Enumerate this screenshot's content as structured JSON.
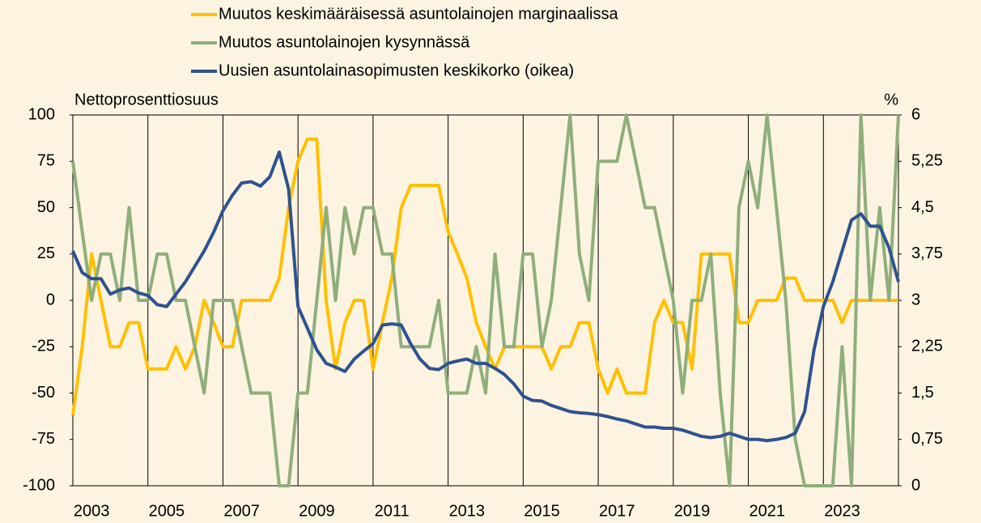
{
  "chart_data": {
    "type": "line",
    "y_axis_label": "Nettoprosenttiosuus",
    "y2_axis_label": "%",
    "x": [
      2003,
      2003.25,
      2003.5,
      2003.75,
      2004,
      2004.25,
      2004.5,
      2004.75,
      2005,
      2005.25,
      2005.5,
      2005.75,
      2006,
      2006.25,
      2006.5,
      2006.75,
      2007,
      2007.25,
      2007.5,
      2007.75,
      2008,
      2008.25,
      2008.5,
      2008.75,
      2009,
      2009.25,
      2009.5,
      2009.75,
      2010,
      2010.25,
      2010.5,
      2010.75,
      2011,
      2011.25,
      2011.5,
      2011.75,
      2012,
      2012.25,
      2012.5,
      2012.75,
      2013,
      2013.25,
      2013.5,
      2013.75,
      2014,
      2014.25,
      2014.5,
      2014.75,
      2015,
      2015.25,
      2015.5,
      2015.75,
      2016,
      2016.25,
      2016.5,
      2016.75,
      2017,
      2017.25,
      2017.5,
      2017.75,
      2018,
      2018.25,
      2018.5,
      2018.75,
      2019,
      2019.25,
      2019.5,
      2019.75,
      2020,
      2020.25,
      2020.5,
      2020.75,
      2021,
      2021.25,
      2021.5,
      2021.75,
      2022,
      2022.25,
      2022.5,
      2022.75,
      2023,
      2023.25,
      2023.5,
      2023.75,
      2024,
      2024.25,
      2024.5,
      2024.75,
      2025
    ],
    "xlim": [
      2003,
      2025
    ],
    "xticks": [
      2003,
      2005,
      2007,
      2009,
      2011,
      2013,
      2015,
      2017,
      2019,
      2021,
      2023
    ],
    "ylim": [
      -100,
      100
    ],
    "yticks": [
      -100,
      -75,
      -50,
      -25,
      0,
      25,
      50,
      75,
      100
    ],
    "y2lim": [
      0,
      6
    ],
    "y2ticks": [
      0,
      {
        "value": 0.75,
        "label": "0,75"
      },
      {
        "value": 1.5,
        "label": "1,5"
      },
      {
        "value": 2.25,
        "label": "2,25"
      },
      3,
      {
        "value": 3.75,
        "label": "3,75"
      },
      {
        "value": 4.5,
        "label": "4,5"
      },
      {
        "value": 5.25,
        "label": "5,25"
      },
      6
    ],
    "grid": true,
    "series": [
      {
        "name": "Muutos keskimääräisessä asuntolainojen marginaalissa",
        "color": "#ffc000",
        "values": [
          -62,
          -25,
          25,
          0,
          -25,
          -25,
          -12,
          -12,
          -37,
          -37,
          -37,
          -25,
          -37,
          -25,
          0,
          -12,
          -25,
          -25,
          0,
          0,
          0,
          0,
          12,
          50,
          75,
          87,
          87,
          0,
          -37,
          -12,
          0,
          0,
          -37,
          -12,
          12,
          50,
          62,
          62,
          62,
          62,
          37,
          25,
          12,
          -12,
          -25,
          -37,
          -25,
          -25,
          -25,
          -25,
          -25,
          -37,
          -25,
          -25,
          -12,
          -12,
          -37,
          -50,
          -37,
          -50,
          -50,
          -50,
          -12,
          0,
          -12,
          -12,
          -37,
          25,
          25,
          25,
          25,
          -12,
          -12,
          0,
          0,
          0,
          12,
          12,
          0,
          0,
          0,
          0,
          -12,
          0,
          0,
          0,
          0,
          0,
          0
        ]
      },
      {
        "name": "Muutos asuntolainojen kysynnässä",
        "color": "#8fae7b",
        "values": [
          75,
          37,
          0,
          25,
          25,
          0,
          50,
          0,
          0,
          25,
          25,
          0,
          0,
          -25,
          -50,
          0,
          0,
          0,
          -25,
          -50,
          -50,
          -50,
          -100,
          -100,
          -50,
          -50,
          0,
          50,
          0,
          50,
          25,
          50,
          50,
          25,
          25,
          -25,
          -25,
          -25,
          -25,
          0,
          -50,
          -50,
          -50,
          -25,
          -50,
          25,
          -25,
          -25,
          25,
          25,
          -25,
          0,
          50,
          100,
          25,
          0,
          75,
          75,
          75,
          100,
          75,
          50,
          50,
          25,
          0,
          -50,
          0,
          0,
          25,
          -50,
          -100,
          50,
          75,
          50,
          100,
          50,
          0,
          -75,
          -100,
          -100,
          -100,
          -100,
          -25,
          -100,
          100,
          0,
          50,
          0,
          100
        ]
      },
      {
        "name": "Uusien asuntolainasopimusten keskikorko (oikea)",
        "color": "#2f528f",
        "axis": "y2",
        "values": [
          3.8,
          3.45,
          3.35,
          3.35,
          3.1,
          3.17,
          3.2,
          3.12,
          3.08,
          2.93,
          2.9,
          3.1,
          3.3,
          3.55,
          3.8,
          4.1,
          4.45,
          4.7,
          4.9,
          4.92,
          4.85,
          5.0,
          5.4,
          4.8,
          2.9,
          2.55,
          2.2,
          1.98,
          1.92,
          1.85,
          2.05,
          2.18,
          2.3,
          2.6,
          2.62,
          2.6,
          2.3,
          2.05,
          1.9,
          1.88,
          1.98,
          2.02,
          2.05,
          1.98,
          1.98,
          1.9,
          1.8,
          1.65,
          1.45,
          1.38,
          1.37,
          1.3,
          1.25,
          1.2,
          1.18,
          1.17,
          1.15,
          1.12,
          1.08,
          1.05,
          1.0,
          0.95,
          0.95,
          0.93,
          0.93,
          0.9,
          0.85,
          0.8,
          0.78,
          0.8,
          0.85,
          0.8,
          0.75,
          0.75,
          0.73,
          0.75,
          0.78,
          0.85,
          1.2,
          2.2,
          2.9,
          3.3,
          3.8,
          4.3,
          4.4,
          4.2,
          4.2,
          3.85,
          3.3
        ]
      }
    ]
  }
}
